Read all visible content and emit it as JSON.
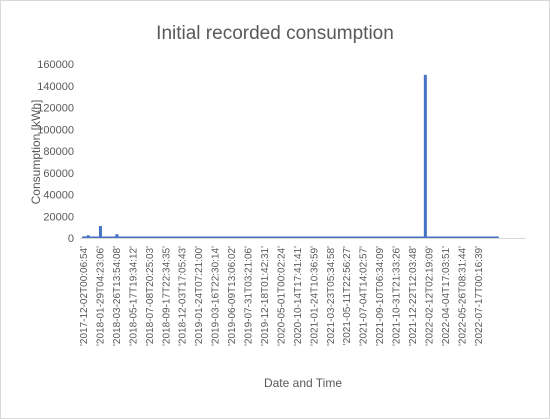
{
  "chart_data": {
    "type": "bar",
    "title": "Initial recorded consumption",
    "xlabel": "Date and Time",
    "ylabel": "Consumption [kWh]",
    "ylim": [
      0,
      160000
    ],
    "yticks": [
      "0",
      "20000",
      "40000",
      "60000",
      "80000",
      "100000",
      "120000",
      "140000",
      "160000"
    ],
    "grid": false,
    "legend": "none",
    "color": "#4472c4",
    "x_tick_labels": [
      "'2017-12-02T00:06:54'",
      "'2018-01-29T04:23:06'",
      "'2018-03-26T13:54:08'",
      "'2018-05-17T19:34:12'",
      "'2018-07-08T20:25:03'",
      "'2018-09-17T22:34:35'",
      "'2018-12-03T17:05:43'",
      "'2019-01-24T07:21:00'",
      "'2019-03-16T22:30:14'",
      "'2019-06-09T13:06:02'",
      "'2019-07-31T03:21:06'",
      "'2019-12-18T01:42:31'",
      "'2020-05-01T00:02:24'",
      "'2020-10-14T17:41:41'",
      "'2021-01-24T10:36:59'",
      "'2021-03-23T05:34:58'",
      "'2021-05-11T22:56:27'",
      "'2021-07-04T14:02:57'",
      "'2021-09-10T06:34:09'",
      "'2021-10-31T21:33:26'",
      "'2021-12-22T12:03:48'",
      "'2022-02-12T02:19:09'",
      "'2022-04-04T17:03:51'",
      "'2022-05-26T08:31:44'",
      "'2022-07-17T00:16:39'"
    ],
    "points": [
      {
        "x": 0.0,
        "value": 1500
      },
      {
        "x": 0.25,
        "value": 2500
      },
      {
        "x": 1.0,
        "value": 11000
      },
      {
        "x": 2.0,
        "value": 3500
      },
      {
        "x": 20.75,
        "value": 150000
      }
    ]
  }
}
